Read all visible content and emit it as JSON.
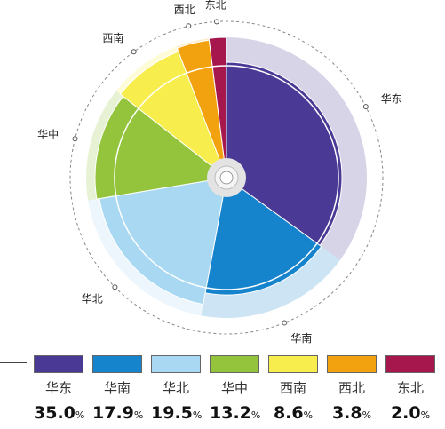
{
  "chart_data": {
    "type": "pie",
    "title": "",
    "unit": "%",
    "categories": [
      "华东",
      "华南",
      "华北",
      "华中",
      "西南",
      "西北",
      "东北"
    ],
    "values": [
      35.0,
      17.9,
      19.5,
      13.2,
      8.6,
      3.8,
      2.0
    ],
    "colors": [
      "#4b3a95",
      "#1584cd",
      "#a9d8f2",
      "#93c43b",
      "#f7ee4e",
      "#f2a20e",
      "#a5174d"
    ],
    "legend": "bottom"
  },
  "value_labels": [
    "35.0",
    "17.9",
    "19.5",
    "13.2",
    "8.6",
    "3.8",
    "2.0"
  ],
  "percent_sign": "%"
}
